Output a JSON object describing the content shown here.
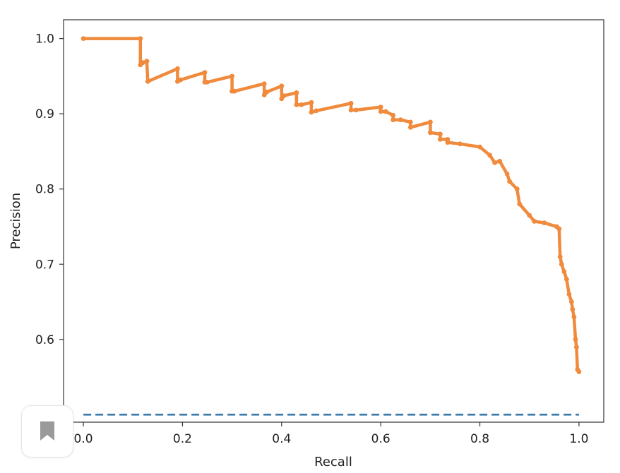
{
  "chart_data": {
    "type": "line",
    "xlabel": "Recall",
    "ylabel": "Precision",
    "xlim": [
      -0.04,
      1.05
    ],
    "ylim": [
      0.49,
      1.025
    ],
    "xticks": [
      "0.0",
      "0.2",
      "0.4",
      "0.6",
      "0.8",
      "1.0"
    ],
    "yticks": [
      "0.5",
      "0.6",
      "0.7",
      "0.8",
      "0.9",
      "1.0"
    ],
    "grid": false,
    "series": [
      {
        "style": "dashed",
        "color": "#3b7bab",
        "x": [
          0.0,
          1.0
        ],
        "y": [
          0.5,
          0.5
        ]
      },
      {
        "style": "solid-marker",
        "color": "#f08a3c",
        "x": [
          0.0,
          0.115,
          0.115,
          0.12,
          0.128,
          0.13,
          0.19,
          0.19,
          0.196,
          0.245,
          0.245,
          0.25,
          0.3,
          0.3,
          0.305,
          0.365,
          0.365,
          0.37,
          0.4,
          0.4,
          0.405,
          0.43,
          0.43,
          0.44,
          0.46,
          0.46,
          0.47,
          0.54,
          0.54,
          0.55,
          0.6,
          0.6,
          0.61,
          0.625,
          0.625,
          0.64,
          0.66,
          0.66,
          0.7,
          0.7,
          0.72,
          0.72,
          0.735,
          0.735,
          0.76,
          0.8,
          0.82,
          0.83,
          0.84,
          0.855,
          0.86,
          0.875,
          0.88,
          0.9,
          0.91,
          0.93,
          0.955,
          0.96,
          0.962,
          0.965,
          0.97,
          0.975,
          0.98,
          0.985,
          0.987,
          0.99,
          0.993,
          0.995,
          0.997,
          1.0
        ],
        "y": [
          1.0,
          1.0,
          0.965,
          0.968,
          0.97,
          0.943,
          0.96,
          0.943,
          0.945,
          0.955,
          0.942,
          0.942,
          0.95,
          0.93,
          0.93,
          0.94,
          0.925,
          0.929,
          0.937,
          0.92,
          0.924,
          0.928,
          0.912,
          0.912,
          0.915,
          0.902,
          0.904,
          0.914,
          0.905,
          0.905,
          0.909,
          0.903,
          0.903,
          0.898,
          0.892,
          0.892,
          0.889,
          0.882,
          0.889,
          0.875,
          0.873,
          0.866,
          0.866,
          0.862,
          0.86,
          0.856,
          0.845,
          0.835,
          0.837,
          0.82,
          0.81,
          0.8,
          0.78,
          0.765,
          0.757,
          0.755,
          0.75,
          0.747,
          0.71,
          0.7,
          0.69,
          0.68,
          0.66,
          0.65,
          0.64,
          0.63,
          0.6,
          0.59,
          0.56,
          0.557
        ]
      }
    ]
  }
}
